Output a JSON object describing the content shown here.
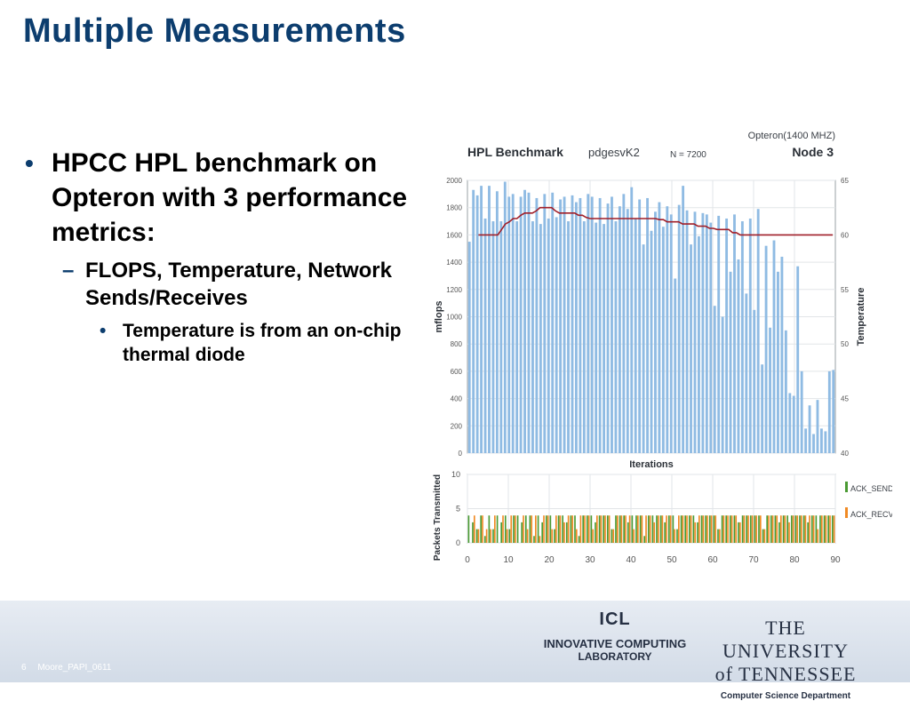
{
  "slide": {
    "title": "Multiple Measurements",
    "bullets": {
      "level1": "HPCC HPL benchmark on Opteron with 3 performance metrics:",
      "level2": "FLOPS, Temperature, Network Sends/Receives",
      "level3": "Temperature is from an on-chip thermal diode"
    },
    "footer": {
      "page": "6",
      "label": "Moore_PAPI_0611"
    },
    "logos": {
      "icl_abbr": "ICL",
      "icl_line1": "INNOVATIVE COMPUTING",
      "icl_line2": "LABORATORY",
      "ut_name": "THE UNIVERSITY of TENNESSEE",
      "ut_dept": "Computer Science Department"
    }
  },
  "chart_data": [
    {
      "type": "bar",
      "title": "HPL Benchmark",
      "subtitle": "pdgesvK2",
      "note": "N = 7200",
      "node": "Node 3",
      "platform": "Opteron(1400 MHZ)",
      "xlabel": "Iterations",
      "ylabel": "mflops",
      "ylabel_right": "Temperature",
      "ylim": [
        0,
        2000
      ],
      "ylim_right": [
        40,
        65
      ],
      "yticks": [
        0,
        200,
        400,
        600,
        800,
        1000,
        1200,
        1400,
        1600,
        1800,
        2000
      ],
      "yticks_right": [
        40,
        45,
        50,
        55,
        60,
        65
      ],
      "grid": true,
      "bar_color": "#8fbbe3",
      "line_color": "#a01e28",
      "series": [
        {
          "name": "mflops",
          "values": [
            1550,
            1930,
            1890,
            1960,
            1720,
            1960,
            1700,
            1920,
            1700,
            1990,
            1880,
            1900,
            1700,
            1880,
            1930,
            1910,
            1700,
            1870,
            1680,
            1900,
            1720,
            1910,
            1730,
            1860,
            1880,
            1700,
            1890,
            1840,
            1870,
            1700,
            1900,
            1880,
            1690,
            1870,
            1680,
            1830,
            1880,
            1700,
            1810,
            1900,
            1790,
            1950,
            1720,
            1860,
            1530,
            1870,
            1630,
            1770,
            1840,
            1660,
            1810,
            1750,
            1280,
            1820,
            1960,
            1780,
            1530,
            1770,
            1590,
            1760,
            1750,
            1690,
            1080,
            1740,
            1000,
            1720,
            1330,
            1750,
            1420,
            1700,
            1170,
            1720,
            1050,
            1790,
            650,
            1520,
            920,
            1560,
            1330,
            1440,
            900,
            440,
            420,
            1370,
            600,
            180,
            350,
            140,
            390,
            180,
            160,
            600,
            610
          ]
        },
        {
          "name": "Temperature",
          "values": [
            60,
            60,
            60,
            60,
            60,
            60,
            60.5,
            61,
            61.2,
            61.5,
            61.5,
            61.8,
            62,
            62,
            62,
            62.2,
            62.5,
            62.5,
            62.5,
            62.5,
            62.2,
            62,
            62,
            62,
            62,
            62,
            61.8,
            61.8,
            61.6,
            61.5,
            61.5,
            61.5,
            61.5,
            61.5,
            61.5,
            61.5,
            61.5,
            61.5,
            61.5,
            61.5,
            61.5,
            61.5,
            61.5,
            61.5,
            61.5,
            61.5,
            61.5,
            61.4,
            61.4,
            61.2,
            61.2,
            61.2,
            61.2,
            61,
            61,
            61,
            61,
            60.8,
            60.8,
            60.8,
            60.6,
            60.6,
            60.5,
            60.5,
            60.5,
            60.5,
            60.2,
            60.2,
            60,
            60,
            60,
            60,
            60,
            60,
            60,
            60,
            60,
            60,
            60,
            60,
            60,
            60,
            60,
            60,
            60,
            60,
            60,
            60,
            60,
            60,
            60,
            60,
            60
          ]
        }
      ]
    },
    {
      "type": "bar",
      "ylabel": "Packets Transmitted",
      "ylim": [
        0,
        10
      ],
      "yticks": [
        0,
        5,
        10
      ],
      "xlim": [
        0,
        90
      ],
      "xticks": [
        0,
        10,
        20,
        30,
        40,
        50,
        60,
        70,
        80,
        90
      ],
      "grid": true,
      "legend_position": "right",
      "series": [
        {
          "name": "ACK_SEND",
          "color": "#4a9a33",
          "values": [
            4,
            3,
            2,
            4,
            1,
            4,
            2,
            4,
            3,
            4,
            2,
            4,
            4,
            3,
            4,
            4,
            1,
            4,
            3,
            4,
            4,
            2,
            4,
            4,
            3,
            4,
            4,
            1,
            4,
            4,
            4,
            3,
            4,
            4,
            4,
            2,
            4,
            4,
            4,
            3,
            4,
            4,
            4,
            1,
            4,
            4,
            4,
            4,
            3,
            4,
            4,
            2,
            4,
            4,
            4,
            4,
            3,
            4,
            4,
            4,
            4,
            2,
            4,
            4,
            4,
            4,
            3,
            4,
            4,
            4,
            4,
            4,
            2,
            4,
            4,
            4,
            3,
            4,
            4,
            4,
            4,
            4,
            4,
            3,
            4,
            4,
            4,
            4,
            4,
            4
          ]
        },
        {
          "name": "ACK_RECV",
          "color": "#f08a24",
          "values": [
            0,
            4,
            2,
            4,
            2,
            2,
            4,
            0,
            4,
            2,
            4,
            4,
            0,
            4,
            2,
            4,
            4,
            1,
            4,
            4,
            2,
            4,
            4,
            3,
            4,
            4,
            2,
            4,
            4,
            4,
            2,
            4,
            4,
            4,
            4,
            2,
            4,
            4,
            4,
            4,
            2,
            4,
            4,
            4,
            4,
            3,
            4,
            4,
            4,
            4,
            2,
            4,
            4,
            4,
            4,
            3,
            4,
            4,
            4,
            4,
            4,
            2,
            4,
            4,
            4,
            4,
            3,
            4,
            4,
            4,
            4,
            4,
            2,
            4,
            4,
            4,
            4,
            4,
            3,
            4,
            4,
            4,
            4,
            4,
            4,
            2,
            4,
            4,
            4,
            4
          ]
        }
      ]
    }
  ]
}
